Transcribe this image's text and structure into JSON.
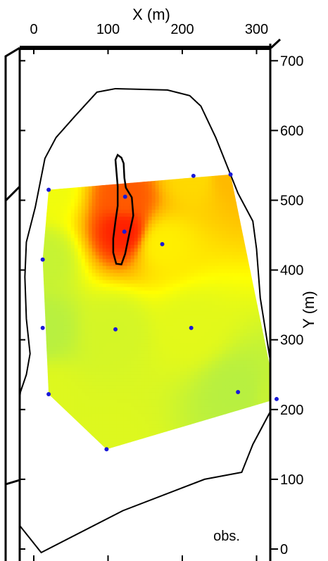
{
  "chart_data": {
    "type": "heatmap",
    "title": "",
    "xlabel": "X (m)",
    "ylabel": "Y (m)",
    "xlim": [
      -20,
      330
    ],
    "ylim": [
      -10,
      720
    ],
    "x_ticks": [
      0,
      100,
      200,
      300
    ],
    "y_ticks": [
      0,
      100,
      200,
      300,
      400,
      500,
      600,
      700
    ],
    "annotation": "obs.",
    "colormap": [
      "#40e8d0",
      "#b8f040",
      "#ffff00",
      "#ffb000",
      "#ff2000"
    ],
    "observation_points": [
      {
        "x": 20,
        "y": 515
      },
      {
        "x": 215,
        "y": 535
      },
      {
        "x": 265,
        "y": 537
      },
      {
        "x": 12,
        "y": 415
      },
      {
        "x": 122,
        "y": 455
      },
      {
        "x": 173,
        "y": 437
      },
      {
        "x": 12,
        "y": 317
      },
      {
        "x": 110,
        "y": 315
      },
      {
        "x": 212,
        "y": 317
      },
      {
        "x": 20,
        "y": 222
      },
      {
        "x": 275,
        "y": 225
      },
      {
        "x": 327,
        "y": 215
      },
      {
        "x": 98,
        "y": 143
      },
      {
        "x": 123,
        "y": 505
      }
    ],
    "field_values": [
      0.45,
      0.62,
      0.72,
      0.3,
      1.0,
      0.55,
      0.25,
      0.35,
      0.4,
      0.38,
      0.25,
      0.3,
      0.38,
      0.9
    ],
    "interpolation_domain": [
      [
        20,
        515
      ],
      [
        265,
        537
      ],
      [
        327,
        215
      ],
      [
        98,
        143
      ],
      [
        20,
        222
      ],
      [
        12,
        415
      ]
    ],
    "outer_boundary": [
      [
        110,
        660
      ],
      [
        85,
        655
      ],
      [
        55,
        620
      ],
      [
        30,
        590
      ],
      [
        15,
        560
      ],
      [
        2,
        490
      ],
      [
        -10,
        440
      ],
      [
        -12,
        390
      ],
      [
        -10,
        330
      ],
      [
        -5,
        280
      ],
      [
        -10,
        250
      ],
      [
        -18,
        225
      ],
      [
        -25,
        160
      ],
      [
        -20,
        90
      ],
      [
        -20,
        35
      ],
      [
        10,
        -5
      ],
      [
        120,
        55
      ],
      [
        230,
        100
      ],
      [
        280,
        110
      ],
      [
        295,
        150
      ],
      [
        320,
        200
      ],
      [
        320,
        260
      ],
      [
        305,
        360
      ],
      [
        300,
        430
      ],
      [
        295,
        470
      ],
      [
        275,
        510
      ],
      [
        245,
        590
      ],
      [
        225,
        635
      ],
      [
        210,
        650
      ],
      [
        180,
        658
      ]
    ],
    "inner_body": [
      [
        113,
        565
      ],
      [
        118,
        561
      ],
      [
        121,
        553
      ],
      [
        122,
        532
      ],
      [
        124,
        518
      ],
      [
        132,
        504
      ],
      [
        134,
        478
      ],
      [
        129,
        454
      ],
      [
        123,
        423
      ],
      [
        118,
        408
      ],
      [
        111,
        409
      ],
      [
        107,
        425
      ],
      [
        107,
        445
      ],
      [
        110,
        470
      ],
      [
        113,
        492
      ],
      [
        113,
        520
      ],
      [
        111,
        545
      ],
      [
        110,
        558
      ]
    ]
  }
}
